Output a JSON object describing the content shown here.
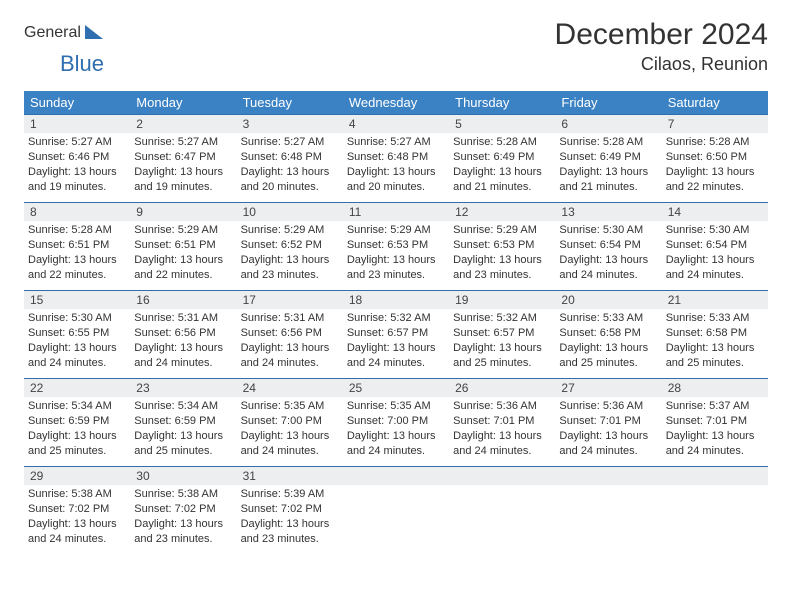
{
  "logo": {
    "part1": "General",
    "part2": "Blue"
  },
  "title": "December 2024",
  "location": "Cilaos, Reunion",
  "colors": {
    "header_bg": "#3b82c4",
    "header_text": "#ffffff",
    "border": "#2f6fb0",
    "daynum_bg": "#eceef0",
    "text": "#333333",
    "logo_gray": "#5d6066",
    "logo_blue": "#2f6fb0",
    "background": "#ffffff"
  },
  "typography": {
    "title_fontsize": 30,
    "location_fontsize": 18,
    "weekday_fontsize": 13,
    "daynum_fontsize": 12,
    "info_fontsize": 11
  },
  "weekdays": [
    "Sunday",
    "Monday",
    "Tuesday",
    "Wednesday",
    "Thursday",
    "Friday",
    "Saturday"
  ],
  "weeks": [
    [
      {
        "d": "1",
        "sr": "5:27 AM",
        "ss": "6:46 PM",
        "dl": "13 hours and 19 minutes."
      },
      {
        "d": "2",
        "sr": "5:27 AM",
        "ss": "6:47 PM",
        "dl": "13 hours and 19 minutes."
      },
      {
        "d": "3",
        "sr": "5:27 AM",
        "ss": "6:48 PM",
        "dl": "13 hours and 20 minutes."
      },
      {
        "d": "4",
        "sr": "5:27 AM",
        "ss": "6:48 PM",
        "dl": "13 hours and 20 minutes."
      },
      {
        "d": "5",
        "sr": "5:28 AM",
        "ss": "6:49 PM",
        "dl": "13 hours and 21 minutes."
      },
      {
        "d": "6",
        "sr": "5:28 AM",
        "ss": "6:49 PM",
        "dl": "13 hours and 21 minutes."
      },
      {
        "d": "7",
        "sr": "5:28 AM",
        "ss": "6:50 PM",
        "dl": "13 hours and 22 minutes."
      }
    ],
    [
      {
        "d": "8",
        "sr": "5:28 AM",
        "ss": "6:51 PM",
        "dl": "13 hours and 22 minutes."
      },
      {
        "d": "9",
        "sr": "5:29 AM",
        "ss": "6:51 PM",
        "dl": "13 hours and 22 minutes."
      },
      {
        "d": "10",
        "sr": "5:29 AM",
        "ss": "6:52 PM",
        "dl": "13 hours and 23 minutes."
      },
      {
        "d": "11",
        "sr": "5:29 AM",
        "ss": "6:53 PM",
        "dl": "13 hours and 23 minutes."
      },
      {
        "d": "12",
        "sr": "5:29 AM",
        "ss": "6:53 PM",
        "dl": "13 hours and 23 minutes."
      },
      {
        "d": "13",
        "sr": "5:30 AM",
        "ss": "6:54 PM",
        "dl": "13 hours and 24 minutes."
      },
      {
        "d": "14",
        "sr": "5:30 AM",
        "ss": "6:54 PM",
        "dl": "13 hours and 24 minutes."
      }
    ],
    [
      {
        "d": "15",
        "sr": "5:30 AM",
        "ss": "6:55 PM",
        "dl": "13 hours and 24 minutes."
      },
      {
        "d": "16",
        "sr": "5:31 AM",
        "ss": "6:56 PM",
        "dl": "13 hours and 24 minutes."
      },
      {
        "d": "17",
        "sr": "5:31 AM",
        "ss": "6:56 PM",
        "dl": "13 hours and 24 minutes."
      },
      {
        "d": "18",
        "sr": "5:32 AM",
        "ss": "6:57 PM",
        "dl": "13 hours and 24 minutes."
      },
      {
        "d": "19",
        "sr": "5:32 AM",
        "ss": "6:57 PM",
        "dl": "13 hours and 25 minutes."
      },
      {
        "d": "20",
        "sr": "5:33 AM",
        "ss": "6:58 PM",
        "dl": "13 hours and 25 minutes."
      },
      {
        "d": "21",
        "sr": "5:33 AM",
        "ss": "6:58 PM",
        "dl": "13 hours and 25 minutes."
      }
    ],
    [
      {
        "d": "22",
        "sr": "5:34 AM",
        "ss": "6:59 PM",
        "dl": "13 hours and 25 minutes."
      },
      {
        "d": "23",
        "sr": "5:34 AM",
        "ss": "6:59 PM",
        "dl": "13 hours and 25 minutes."
      },
      {
        "d": "24",
        "sr": "5:35 AM",
        "ss": "7:00 PM",
        "dl": "13 hours and 24 minutes."
      },
      {
        "d": "25",
        "sr": "5:35 AM",
        "ss": "7:00 PM",
        "dl": "13 hours and 24 minutes."
      },
      {
        "d": "26",
        "sr": "5:36 AM",
        "ss": "7:01 PM",
        "dl": "13 hours and 24 minutes."
      },
      {
        "d": "27",
        "sr": "5:36 AM",
        "ss": "7:01 PM",
        "dl": "13 hours and 24 minutes."
      },
      {
        "d": "28",
        "sr": "5:37 AM",
        "ss": "7:01 PM",
        "dl": "13 hours and 24 minutes."
      }
    ],
    [
      {
        "d": "29",
        "sr": "5:38 AM",
        "ss": "7:02 PM",
        "dl": "13 hours and 24 minutes."
      },
      {
        "d": "30",
        "sr": "5:38 AM",
        "ss": "7:02 PM",
        "dl": "13 hours and 23 minutes."
      },
      {
        "d": "31",
        "sr": "5:39 AM",
        "ss": "7:02 PM",
        "dl": "13 hours and 23 minutes."
      },
      null,
      null,
      null,
      null
    ]
  ],
  "labels": {
    "sunrise": "Sunrise:",
    "sunset": "Sunset:",
    "daylight": "Daylight:"
  }
}
